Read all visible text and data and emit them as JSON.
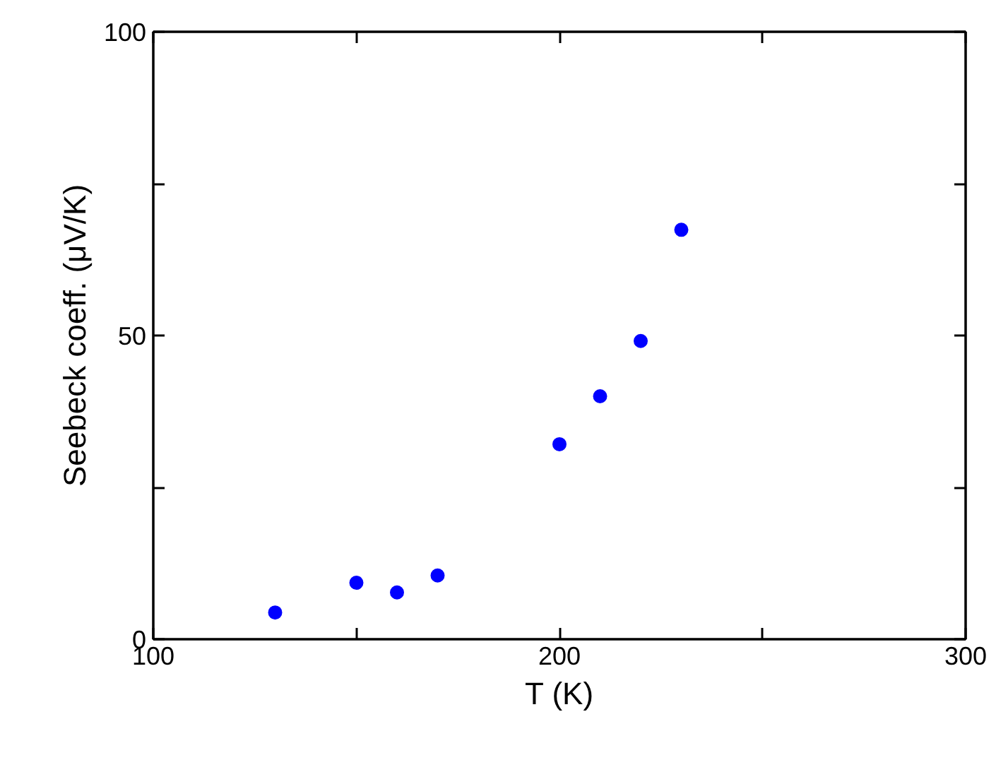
{
  "chart_data": {
    "type": "scatter",
    "xlabel": "T (K)",
    "ylabel": "Seebeck coeff. (μV/K)",
    "x": [
      130,
      150,
      160,
      170,
      200,
      210,
      220,
      230
    ],
    "series": [
      {
        "color": "#0000ff",
        "values": [
          4.4,
          9.3,
          7.7,
          10.5,
          32.1,
          40,
          49.1,
          67.4
        ]
      }
    ],
    "xlim": [
      100,
      300
    ],
    "ylim": [
      0,
      100
    ],
    "xticks": [
      100,
      {
        "value": 150,
        "label": null
      },
      200,
      {
        "value": 250,
        "label": null
      },
      300
    ],
    "yticks": [
      0,
      {
        "value": 25,
        "label": null
      },
      50,
      {
        "value": 75,
        "label": null
      },
      100
    ],
    "marker": "circle"
  }
}
